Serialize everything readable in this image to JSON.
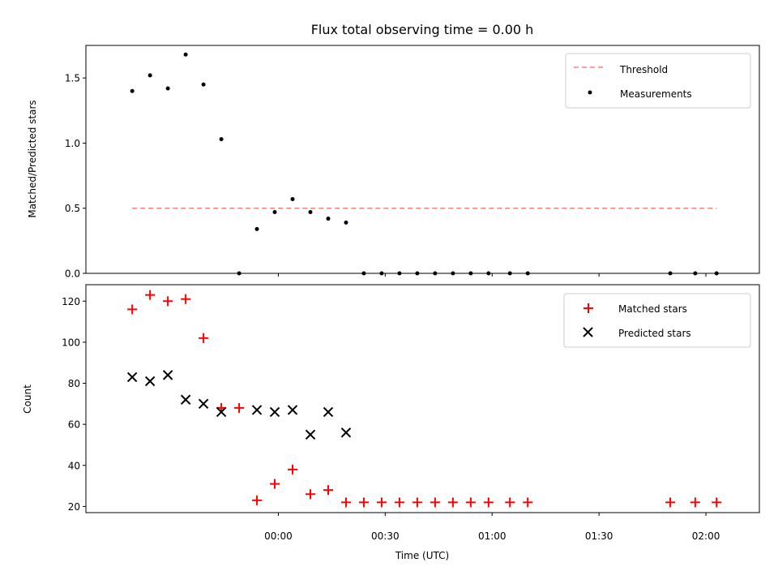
{
  "chart_data": [
    {
      "type": "scatter",
      "title": "Flux total observing time = 0.00 h",
      "xlabel": "",
      "ylabel": "Matched/Predicted stars",
      "xlim": [
        "23:06",
        "02:15"
      ],
      "ylim": [
        0,
        1.75
      ],
      "yticks": [
        0.0,
        0.5,
        1.0,
        1.5
      ],
      "ytick_labels": [
        "0.0",
        "0.5",
        "1.0",
        "1.5"
      ],
      "xticks": [
        "00:00",
        "00:30",
        "01:00",
        "01:30",
        "02:00"
      ],
      "grid": false,
      "legend": "top-right",
      "series": [
        {
          "name": "Threshold",
          "style": "dashed-line",
          "color": "#ff7f7f",
          "points": [
            [
              "23:19",
              0.5
            ],
            [
              "02:03",
              0.5
            ]
          ]
        },
        {
          "name": "Measurements",
          "style": "dot",
          "color": "#000000",
          "points": [
            [
              "23:19",
              1.4
            ],
            [
              "23:24",
              1.52
            ],
            [
              "23:29",
              1.42
            ],
            [
              "23:34",
              1.68
            ],
            [
              "23:39",
              1.45
            ],
            [
              "23:44",
              1.03
            ],
            [
              "23:49",
              0.0
            ],
            [
              "23:54",
              0.34
            ],
            [
              "23:59",
              0.47
            ],
            [
              "00:04",
              0.57
            ],
            [
              "00:09",
              0.47
            ],
            [
              "00:14",
              0.42
            ],
            [
              "00:19",
              0.39
            ],
            [
              "00:24",
              0.0
            ],
            [
              "00:29",
              0.0
            ],
            [
              "00:34",
              0.0
            ],
            [
              "00:39",
              0.0
            ],
            [
              "00:44",
              0.0
            ],
            [
              "00:49",
              0.0
            ],
            [
              "00:54",
              0.0
            ],
            [
              "00:59",
              0.0
            ],
            [
              "01:05",
              0.0
            ],
            [
              "01:10",
              0.0
            ],
            [
              "01:50",
              0.0
            ],
            [
              "01:57",
              0.0
            ],
            [
              "02:03",
              0.0
            ]
          ]
        }
      ]
    },
    {
      "type": "scatter",
      "title": "",
      "xlabel": "Time (UTC)",
      "ylabel": "Count",
      "xlim": [
        "23:06",
        "02:15"
      ],
      "ylim": [
        17,
        128
      ],
      "yticks": [
        20,
        40,
        60,
        80,
        100,
        120
      ],
      "ytick_labels": [
        "20",
        "40",
        "60",
        "80",
        "100",
        "120"
      ],
      "xticks": [
        "00:00",
        "00:30",
        "01:00",
        "01:30",
        "02:00"
      ],
      "grid": false,
      "legend": "top-right",
      "series": [
        {
          "name": "Matched stars",
          "style": "plus",
          "color": "#ff0000",
          "points": [
            [
              "23:19",
              116
            ],
            [
              "23:24",
              123
            ],
            [
              "23:29",
              120
            ],
            [
              "23:34",
              121
            ],
            [
              "23:39",
              102
            ],
            [
              "23:44",
              68
            ],
            [
              "23:49",
              68
            ],
            [
              "23:54",
              23
            ],
            [
              "23:59",
              31
            ],
            [
              "00:04",
              38
            ],
            [
              "00:09",
              26
            ],
            [
              "00:14",
              28
            ],
            [
              "00:19",
              22
            ],
            [
              "00:24",
              22
            ],
            [
              "00:29",
              22
            ],
            [
              "00:34",
              22
            ],
            [
              "00:39",
              22
            ],
            [
              "00:44",
              22
            ],
            [
              "00:49",
              22
            ],
            [
              "00:54",
              22
            ],
            [
              "00:59",
              22
            ],
            [
              "01:05",
              22
            ],
            [
              "01:10",
              22
            ],
            [
              "01:50",
              22
            ],
            [
              "01:57",
              22
            ],
            [
              "02:03",
              22
            ]
          ]
        },
        {
          "name": "Predicted stars",
          "style": "x",
          "color": "#000000",
          "points": [
            [
              "23:19",
              83
            ],
            [
              "23:24",
              81
            ],
            [
              "23:29",
              84
            ],
            [
              "23:34",
              72
            ],
            [
              "23:39",
              70
            ],
            [
              "23:44",
              66
            ],
            [
              "23:54",
              67
            ],
            [
              "23:59",
              66
            ],
            [
              "00:04",
              67
            ],
            [
              "00:09",
              55
            ],
            [
              "00:14",
              66
            ],
            [
              "00:19",
              56
            ]
          ]
        }
      ]
    }
  ]
}
